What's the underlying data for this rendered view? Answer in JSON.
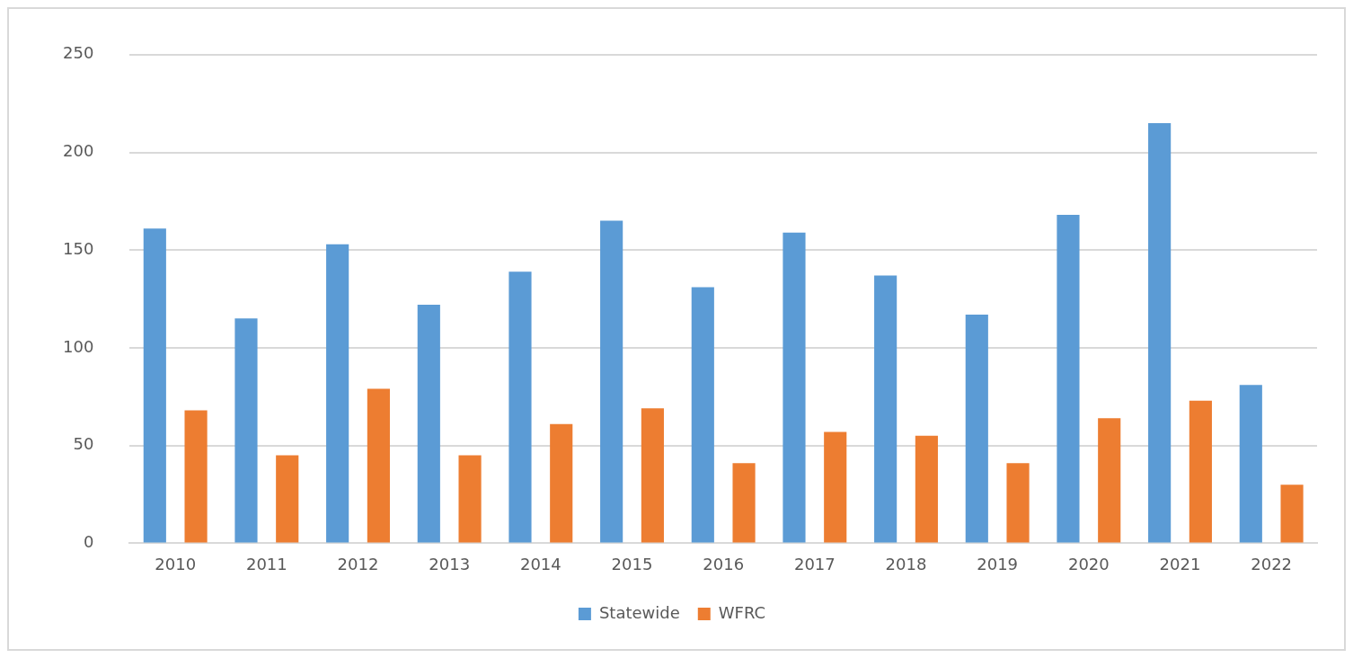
{
  "chart_data": {
    "type": "bar",
    "categories": [
      "2010",
      "2011",
      "2012",
      "2013",
      "2014",
      "2015",
      "2016",
      "2017",
      "2018",
      "2019",
      "2020",
      "2021",
      "2022"
    ],
    "series": [
      {
        "name": "Statewide",
        "color": "#5b9bd5",
        "values": [
          161,
          115,
          153,
          122,
          139,
          165,
          131,
          159,
          137,
          117,
          168,
          215,
          81
        ]
      },
      {
        "name": "WFRC",
        "color": "#ed7d31",
        "values": [
          68,
          45,
          79,
          45,
          61,
          69,
          41,
          57,
          55,
          41,
          64,
          73,
          30
        ]
      }
    ],
    "ylim": [
      0,
      250
    ],
    "yticks": [
      0,
      50,
      100,
      150,
      200,
      250
    ],
    "grid": "y",
    "legend": "bottom"
  }
}
